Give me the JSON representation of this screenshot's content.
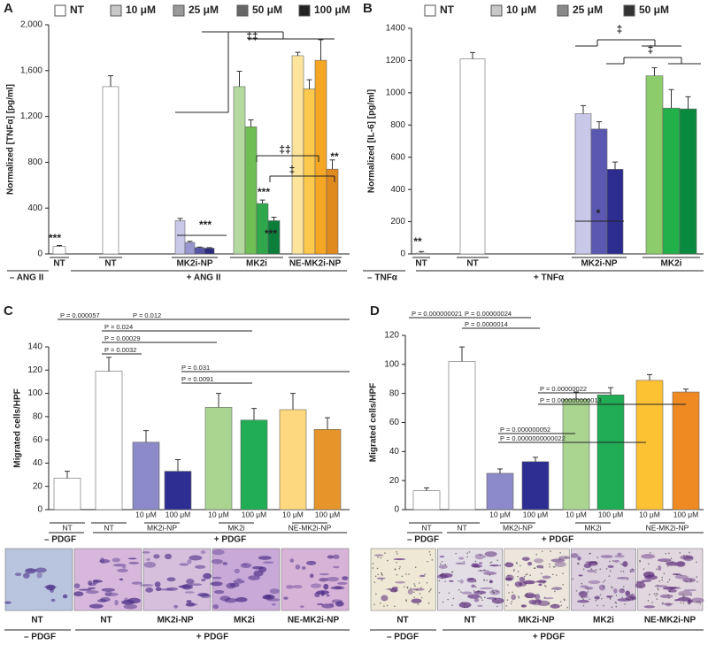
{
  "chart_data": [
    {
      "type": "bar",
      "panel": "A",
      "ylabel": "Normalized [TNFα] [pg/ml]",
      "ylim": [
        0,
        2000
      ],
      "yticks": [
        0,
        400,
        800,
        {
          "value": 1200,
          "label": "1,200"
        },
        {
          "value": 1600,
          "label": "1,600"
        },
        {
          "value": 2000,
          "label": "2,000"
        }
      ],
      "groups": [
        "NT",
        "NT",
        "MK2i-NP",
        "MK2i",
        "NE-MK2i-NP"
      ],
      "conditions": [
        "– ANG II",
        "+ ANG II"
      ],
      "series": [
        {
          "name": "NT",
          "color": "#ffffff",
          "bar_colors": [
            "#ffffff",
            "#ffffff",
            null,
            null,
            null
          ],
          "values": [
            65,
            1460,
            null,
            null,
            null
          ],
          "errors": [
            8,
            95,
            null,
            null,
            null
          ]
        },
        {
          "name": "10 μM",
          "color": "#c8c8c8",
          "bar_colors": [
            null,
            null,
            "#c9c8e8",
            "#b3d99f",
            "#fde49c"
          ],
          "values": [
            null,
            null,
            290,
            1460,
            1730
          ],
          "errors": [
            null,
            null,
            20,
            135,
            30
          ]
        },
        {
          "name": "25 μM",
          "color": "#9a9a9a",
          "bar_colors": [
            null,
            null,
            "#9896cf",
            "#70bf55",
            "#fcc94c"
          ],
          "values": [
            null,
            null,
            100,
            1110,
            1440
          ],
          "errors": [
            null,
            null,
            10,
            60,
            80
          ]
        },
        {
          "name": "50 μM",
          "color": "#666666",
          "bar_colors": [
            null,
            null,
            "#5755a8",
            "#2ea84a",
            "#f5a724"
          ],
          "values": [
            null,
            null,
            55,
            440,
            1690
          ],
          "errors": [
            null,
            null,
            5,
            30,
            180
          ]
        },
        {
          "name": "100 μM",
          "color": "#222222",
          "bar_colors": [
            null,
            null,
            "#2d2d80",
            "#0b7e3b",
            "#e08a1e"
          ],
          "values": [
            null,
            null,
            50,
            290,
            740
          ],
          "errors": [
            null,
            null,
            5,
            30,
            80
          ]
        }
      ],
      "annotations": [
        "***",
        "***",
        "***",
        "***",
        "**",
        "‡‡",
        "‡‡",
        "‡"
      ]
    },
    {
      "type": "bar",
      "panel": "B",
      "ylabel": "Normalized [IL-6] [pg/ml]",
      "ylim": [
        0,
        1400
      ],
      "yticks": [
        0,
        200,
        400,
        600,
        800,
        1000,
        1200,
        1400
      ],
      "groups": [
        "NT",
        "NT",
        "MK2i-NP",
        "MK2i"
      ],
      "conditions": [
        "– TNFα",
        "+ TNFα"
      ],
      "series": [
        {
          "name": "NT",
          "color": "#ffffff",
          "bar_colors": [
            "#ffffff",
            "#ffffff",
            null,
            null
          ],
          "values": [
            5,
            1210,
            null,
            null
          ],
          "errors": [
            10,
            40,
            null,
            null
          ]
        },
        {
          "name": "10 μM",
          "color": "#c8c8c8",
          "bar_colors": [
            null,
            null,
            "#c9c8e8",
            "#8ccc6b"
          ],
          "values": [
            null,
            null,
            870,
            1105
          ],
          "errors": [
            null,
            null,
            50,
            50
          ]
        },
        {
          "name": "25 μM",
          "color": "#8a8a8a",
          "bar_colors": [
            null,
            null,
            "#5a58b0",
            "#22b04b"
          ],
          "values": [
            null,
            null,
            775,
            905
          ],
          "errors": [
            null,
            null,
            45,
            115
          ]
        },
        {
          "name": "50 μM",
          "color": "#333333",
          "bar_colors": [
            null,
            null,
            "#2d2d90",
            "#0a8a3e"
          ],
          "values": [
            null,
            null,
            525,
            900
          ],
          "errors": [
            null,
            null,
            45,
            75
          ]
        }
      ],
      "annotations": [
        "**",
        "*",
        "‡",
        "‡"
      ]
    },
    {
      "type": "bar",
      "panel": "C",
      "ylabel": "Migrated cells/HPF",
      "ylim": [
        0,
        140
      ],
      "yticks": [
        0,
        20,
        40,
        60,
        80,
        100,
        120,
        140
      ],
      "categories": [
        null,
        null,
        "10 μM",
        "100 μM",
        "10 μM",
        "100 μM",
        "10 μM",
        "100 μM"
      ],
      "groups": [
        "NT",
        "NT",
        "MK2i-NP",
        "MK2i",
        "NE-MK2i-NP"
      ],
      "conditions": [
        "– PDGF",
        "+ PDGF"
      ],
      "values": [
        27,
        119,
        58,
        33,
        88,
        77,
        86,
        69
      ],
      "errors": [
        6,
        12,
        10,
        10,
        12,
        10,
        14,
        10
      ],
      "colors": [
        "#ffffff",
        "#ffffff",
        "#8c8ac8",
        "#2e2e92",
        "#a9d591",
        "#20ad55",
        "#fed87e",
        "#e6952b"
      ],
      "annotations": [
        "P = 0.000057",
        "P = 0.012",
        "P = 0.024",
        "P = 0.00029",
        "P = 0.0032",
        "P = 0.031",
        "P = 0.0091"
      ]
    },
    {
      "type": "bar",
      "panel": "D",
      "ylabel": "Migrated cells/HPF",
      "ylim": [
        0,
        120
      ],
      "yticks": [
        0,
        20,
        40,
        60,
        80,
        100,
        120
      ],
      "categories": [
        null,
        null,
        "10 μM",
        "100 μM",
        "10 μM",
        "100 μM",
        "10 μM",
        "100 μM"
      ],
      "groups": [
        "NT",
        "NT",
        "MK2i-NP",
        "MK2i",
        "NE-MK2i-NP"
      ],
      "conditions": [
        "– PDGF",
        "+ PDGF"
      ],
      "values": [
        13,
        102,
        25,
        33,
        76,
        79,
        89,
        81
      ],
      "errors": [
        2,
        10,
        3,
        3,
        5,
        5,
        4,
        2
      ],
      "colors": [
        "#ffffff",
        "#ffffff",
        "#8c8ac8",
        "#2e2e92",
        "#a9d591",
        "#20ad55",
        "#fdc233",
        "#ef8a22"
      ],
      "annotations": [
        "P = 0.000000021",
        "P = 0.00000024",
        "P = 0.0000014",
        "P = 0.00000022",
        "P = 0.000000000013",
        "P = 0.000000052",
        "P = 0.0000000000022"
      ]
    }
  ],
  "micrographs": [
    {
      "labels": [
        "NT",
        "NT",
        "MK2i-NP",
        "MK2i",
        "NE-MK2i-NP"
      ],
      "conditions": [
        "– PDGF",
        "+ PDGF"
      ]
    },
    {
      "labels": [
        "NT",
        "NT",
        "MK2i-NP",
        "MK2i",
        "NE-MK2i-NP"
      ],
      "conditions": [
        "– PDGF",
        "+ PDGF"
      ]
    }
  ]
}
